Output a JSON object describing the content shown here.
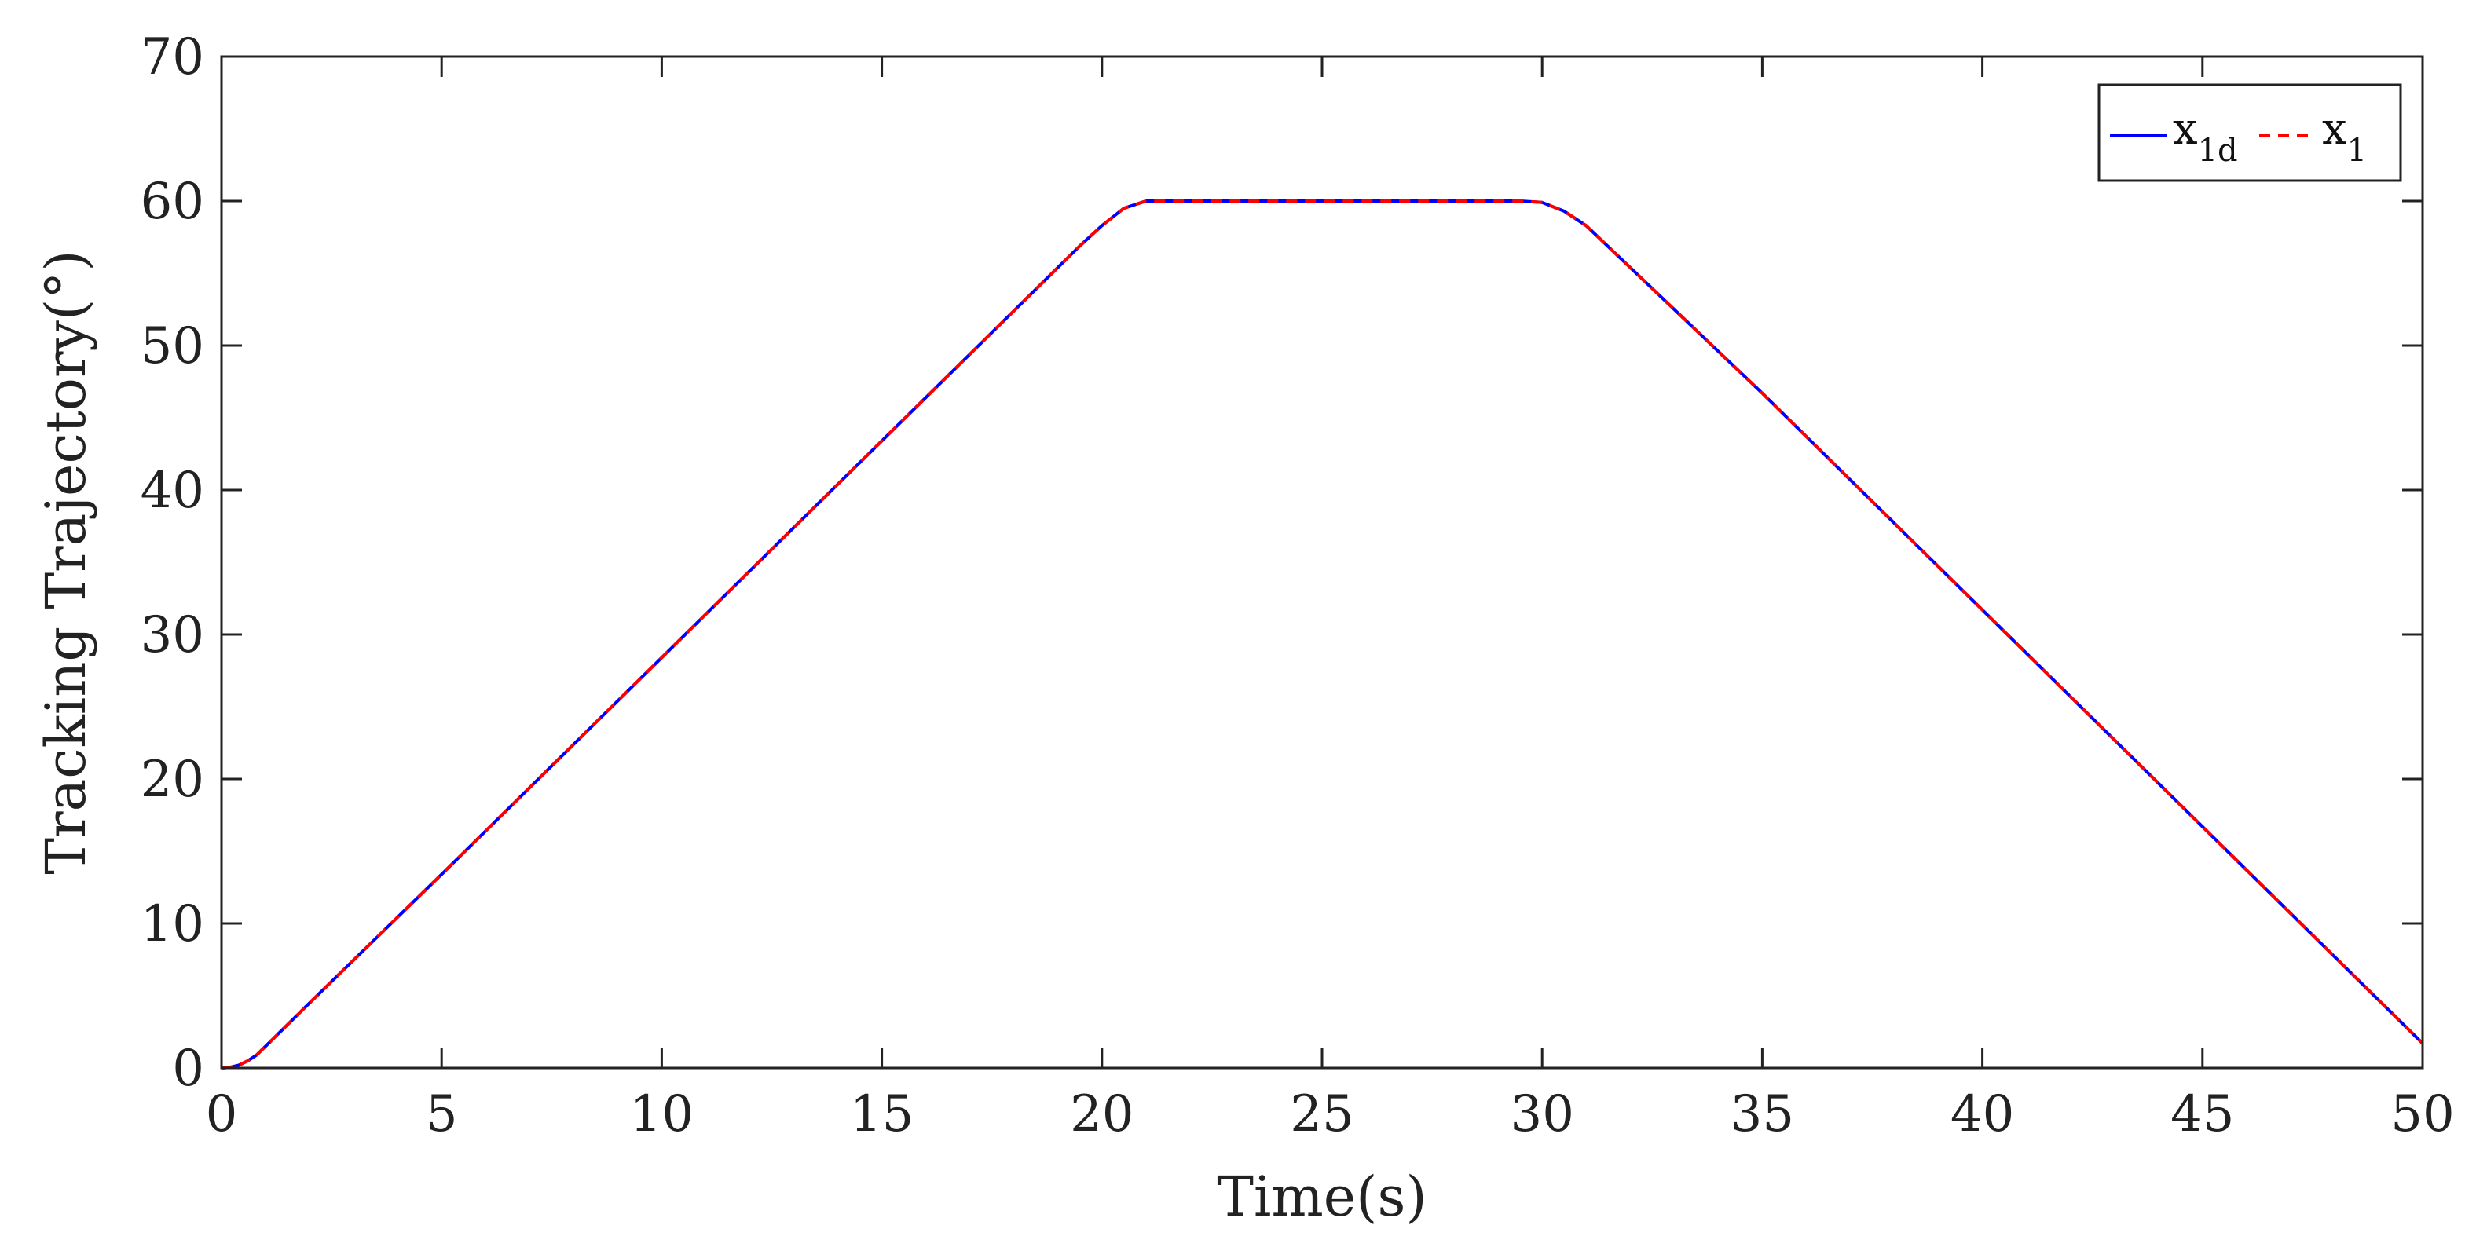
{
  "chart_data": {
    "type": "line",
    "title": "",
    "xlabel": "Time(s)",
    "ylabel": "Tracking Trajectory(°)",
    "xlim": [
      0,
      50
    ],
    "ylim": [
      0,
      70
    ],
    "xticks": [
      0,
      5,
      10,
      15,
      20,
      25,
      30,
      35,
      40,
      45,
      50
    ],
    "yticks": [
      0,
      10,
      20,
      30,
      40,
      50,
      60,
      70
    ],
    "xtick_labels": [
      "0",
      "5",
      "10",
      "15",
      "20",
      "25",
      "30",
      "35",
      "40",
      "45",
      "50"
    ],
    "ytick_labels": [
      "0",
      "10",
      "20",
      "30",
      "40",
      "50",
      "60",
      "70"
    ],
    "grid": false,
    "legend_position": "top-right",
    "series": [
      {
        "name": "x1d",
        "legend_main": "x",
        "legend_sub": "1d",
        "color": "#0000ff",
        "style": "solid",
        "x": [
          0,
          0.2,
          0.4,
          0.6,
          0.8,
          1.0,
          1.5,
          2,
          5,
          10,
          15,
          19,
          19.5,
          20,
          20.5,
          21,
          25,
          29.5,
          30,
          30.5,
          31,
          35,
          40,
          45,
          50
        ],
        "y": [
          0,
          0.05,
          0.2,
          0.5,
          0.9,
          1.5,
          3.0,
          4.5,
          13.4,
          28.4,
          43.4,
          55.4,
          56.9,
          58.3,
          59.5,
          60,
          60,
          60,
          59.9,
          59.3,
          58.3,
          46.7,
          31.7,
          16.7,
          1.7
        ]
      },
      {
        "name": "x1",
        "legend_main": "x",
        "legend_sub": "1",
        "color": "#ff0000",
        "style": "dashed",
        "x": [
          0,
          0.2,
          0.4,
          0.6,
          0.8,
          1.0,
          1.5,
          2,
          5,
          10,
          15,
          19,
          19.5,
          20,
          20.5,
          21,
          25,
          29.5,
          30,
          30.5,
          31,
          35,
          40,
          45,
          50
        ],
        "y": [
          0,
          0.05,
          0.2,
          0.5,
          0.9,
          1.5,
          3.0,
          4.5,
          13.4,
          28.4,
          43.4,
          55.4,
          56.9,
          58.3,
          59.5,
          60,
          60,
          60,
          59.9,
          59.3,
          58.3,
          46.7,
          31.7,
          16.7,
          1.7
        ]
      }
    ]
  }
}
